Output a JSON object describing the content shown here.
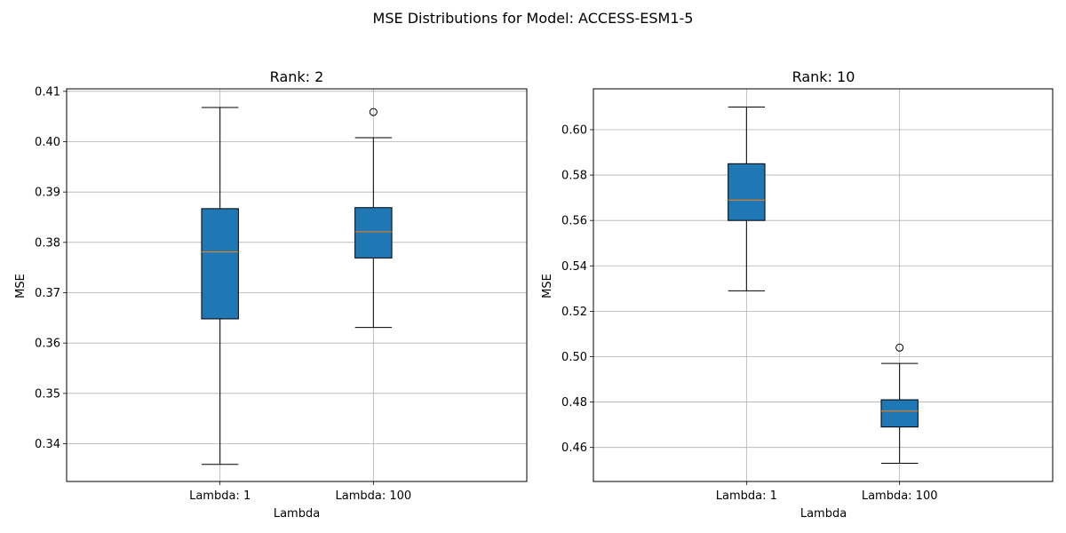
{
  "figure": {
    "suptitle": "MSE Distributions for Model: ACCESS-ESM1-5"
  },
  "colors": {
    "box_fill": "#1f77b4",
    "median": "#ff7f0e",
    "grid": "#b0b0b0",
    "edge": "#000000"
  },
  "chart_data": [
    {
      "type": "box",
      "title": "Rank: 2",
      "xlabel": "Lambda",
      "ylabel": "MSE",
      "categories": [
        "Lambda: 1",
        "Lambda: 100"
      ],
      "ylim": [
        0.3325,
        0.4105
      ],
      "yticks": [
        0.34,
        0.35,
        0.36,
        0.37,
        0.38,
        0.39,
        0.4,
        0.41
      ],
      "ytick_labels": [
        "0.34",
        "0.35",
        "0.36",
        "0.37",
        "0.38",
        "0.39",
        "0.40",
        "0.41"
      ],
      "grid": true,
      "boxes": [
        {
          "whisker_low": 0.3359,
          "q1": 0.3648,
          "median": 0.3781,
          "q3": 0.3867,
          "whisker_high": 0.4068,
          "outliers": []
        },
        {
          "whisker_low": 0.3631,
          "q1": 0.3769,
          "median": 0.3821,
          "q3": 0.3869,
          "whisker_high": 0.4008,
          "outliers": [
            0.4059
          ]
        }
      ]
    },
    {
      "type": "box",
      "title": "Rank: 10",
      "xlabel": "Lambda",
      "ylabel": "MSE",
      "categories": [
        "Lambda: 1",
        "Lambda: 100"
      ],
      "ylim": [
        0.445,
        0.618
      ],
      "yticks": [
        0.46,
        0.48,
        0.5,
        0.52,
        0.54,
        0.56,
        0.58,
        0.6
      ],
      "ytick_labels": [
        "0.46",
        "0.48",
        "0.50",
        "0.52",
        "0.54",
        "0.56",
        "0.58",
        "0.60"
      ],
      "grid": true,
      "boxes": [
        {
          "whisker_low": 0.529,
          "q1": 0.56,
          "median": 0.569,
          "q3": 0.585,
          "whisker_high": 0.61,
          "outliers": []
        },
        {
          "whisker_low": 0.453,
          "q1": 0.469,
          "median": 0.476,
          "q3": 0.481,
          "whisker_high": 0.497,
          "outliers": [
            0.504
          ]
        }
      ]
    }
  ]
}
